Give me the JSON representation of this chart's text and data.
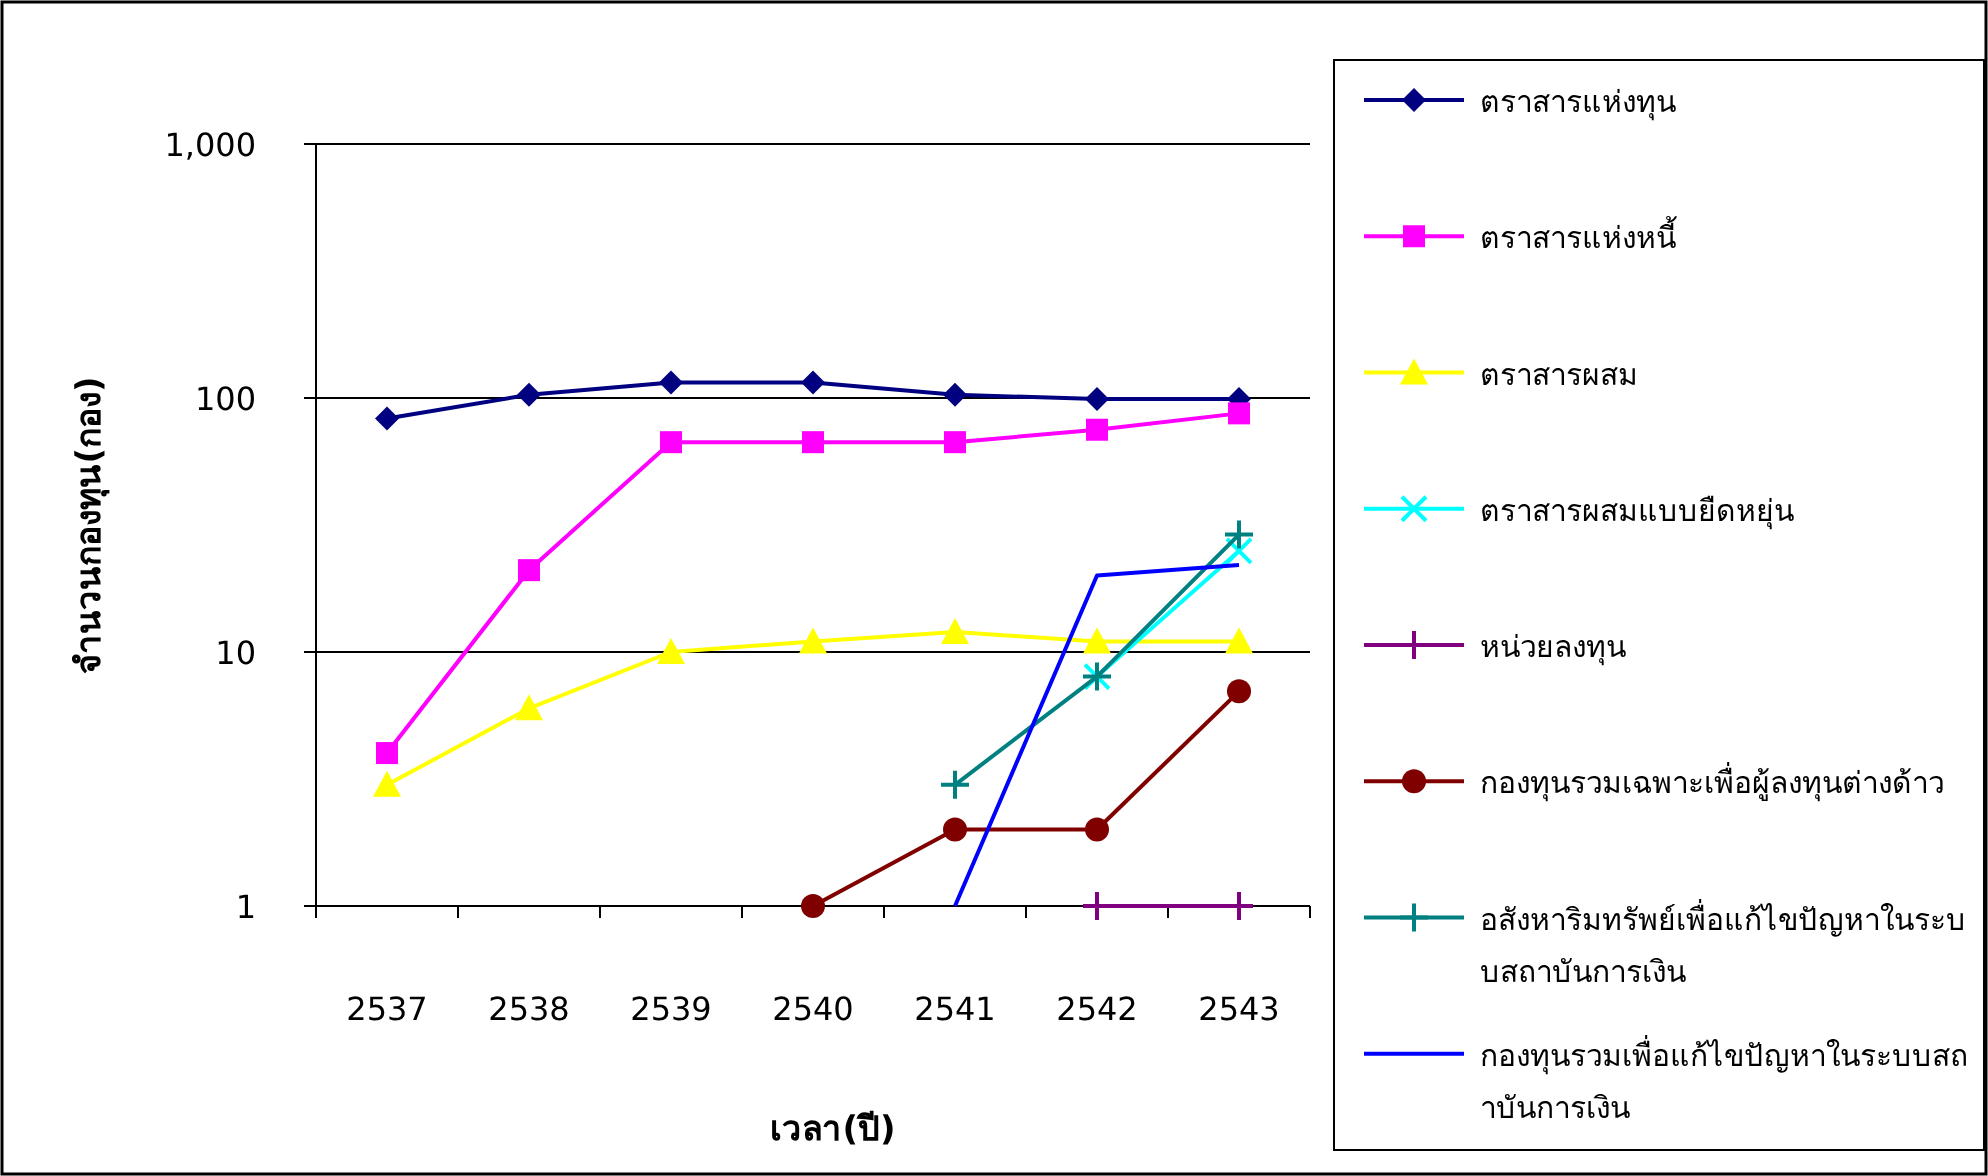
{
  "chart_data": {
    "type": "line",
    "xlabel": "เวลา(ปี)",
    "ylabel": "จำนวนกองทุน(กอง)",
    "categories": [
      "2537",
      "2538",
      "2539",
      "2540",
      "2541",
      "2542",
      "2543"
    ],
    "log": true,
    "ylim": [
      1,
      1000
    ],
    "yticks": [
      1,
      10,
      100,
      {
        "value": 1000,
        "label": "1,000"
      }
    ],
    "grid": "y",
    "legend": "right",
    "series": [
      {
        "name": "ตราสารแห่งทุน",
        "color": "#000080",
        "marker": "diamond",
        "values": [
          83,
          103,
          115,
          115,
          103,
          99,
          99
        ]
      },
      {
        "name": "ตราสารแห่งหนี้",
        "color": "#ff00ff",
        "marker": "square",
        "values": [
          4,
          21,
          67,
          67,
          67,
          75,
          87
        ]
      },
      {
        "name": "ตราสารผสม",
        "color": "#ffff00",
        "marker": "triangle",
        "values": [
          3,
          6,
          10,
          11,
          12,
          11,
          11
        ]
      },
      {
        "name": "ตราสารผสมแบบยืดหยุ่น",
        "color": "#00ffff",
        "marker": "x",
        "values": [
          null,
          null,
          null,
          null,
          null,
          8,
          25
        ]
      },
      {
        "name": "หน่วยลงทุน",
        "color": "#800080",
        "marker": "cross",
        "values": [
          null,
          null,
          null,
          null,
          null,
          1,
          1
        ]
      },
      {
        "name": "กองทุนรวมเฉพาะเพื่อผู้ลงทุนต่างด้าว",
        "color": "#800000",
        "marker": "circle",
        "values": [
          null,
          null,
          null,
          1,
          2,
          2,
          7
        ]
      },
      {
        "name": "อสังหาริมทรัพย์เพื่อแก้ไขปัญหาในระบบสถาบันการเงิน",
        "color": "#008080",
        "marker": "cross",
        "values": [
          null,
          null,
          null,
          null,
          3,
          8,
          29
        ]
      },
      {
        "name": "กองทุนรวมเพื่อแก้ไขปัญหาในระบบสถาบันการเงิน",
        "color": "#0000ff",
        "marker": "none",
        "values": [
          null,
          null,
          null,
          null,
          1,
          20,
          22
        ]
      }
    ]
  }
}
